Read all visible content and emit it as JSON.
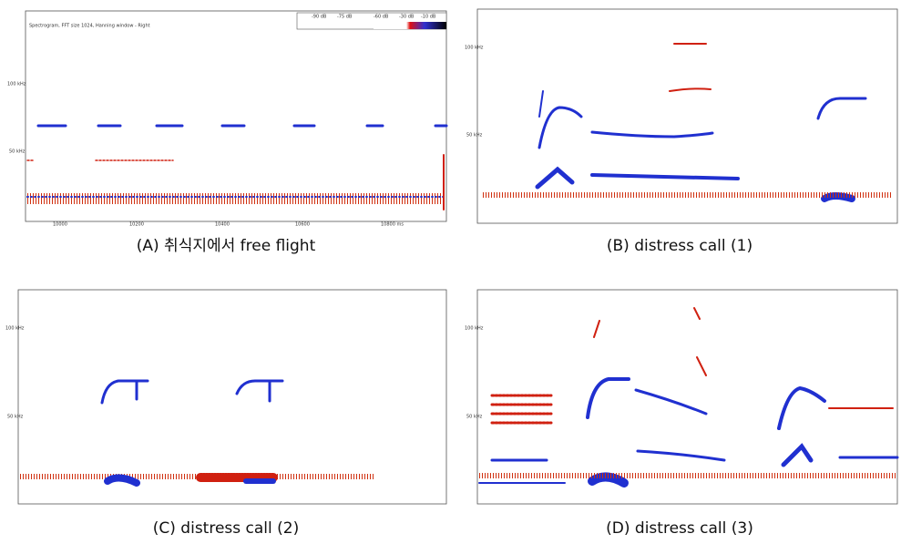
{
  "panels": [
    {
      "caption": "(A) 취식지에서 free flight",
      "header": "Spectrogram, FFT size 1024, Hanning window - Right",
      "legend": [
        "-90 dB",
        "-75 dB",
        "-60 dB",
        "-30 dB",
        "-10 dB"
      ],
      "y_labels": [
        "100 kHz",
        "50 kHz"
      ],
      "x_labels": [
        "10000",
        "10200",
        "10400",
        "10600",
        "10800 ms"
      ]
    },
    {
      "caption": "(B) distress call (1)",
      "y_labels": [
        "100 kHz",
        "50 kHz"
      ]
    },
    {
      "caption": "(C) distress call (2)",
      "y_labels": [
        "100 kHz",
        "50 kHz"
      ]
    },
    {
      "caption": "(D) distress call (3)",
      "y_labels": [
        "100 kHz",
        "50 kHz"
      ]
    }
  ]
}
